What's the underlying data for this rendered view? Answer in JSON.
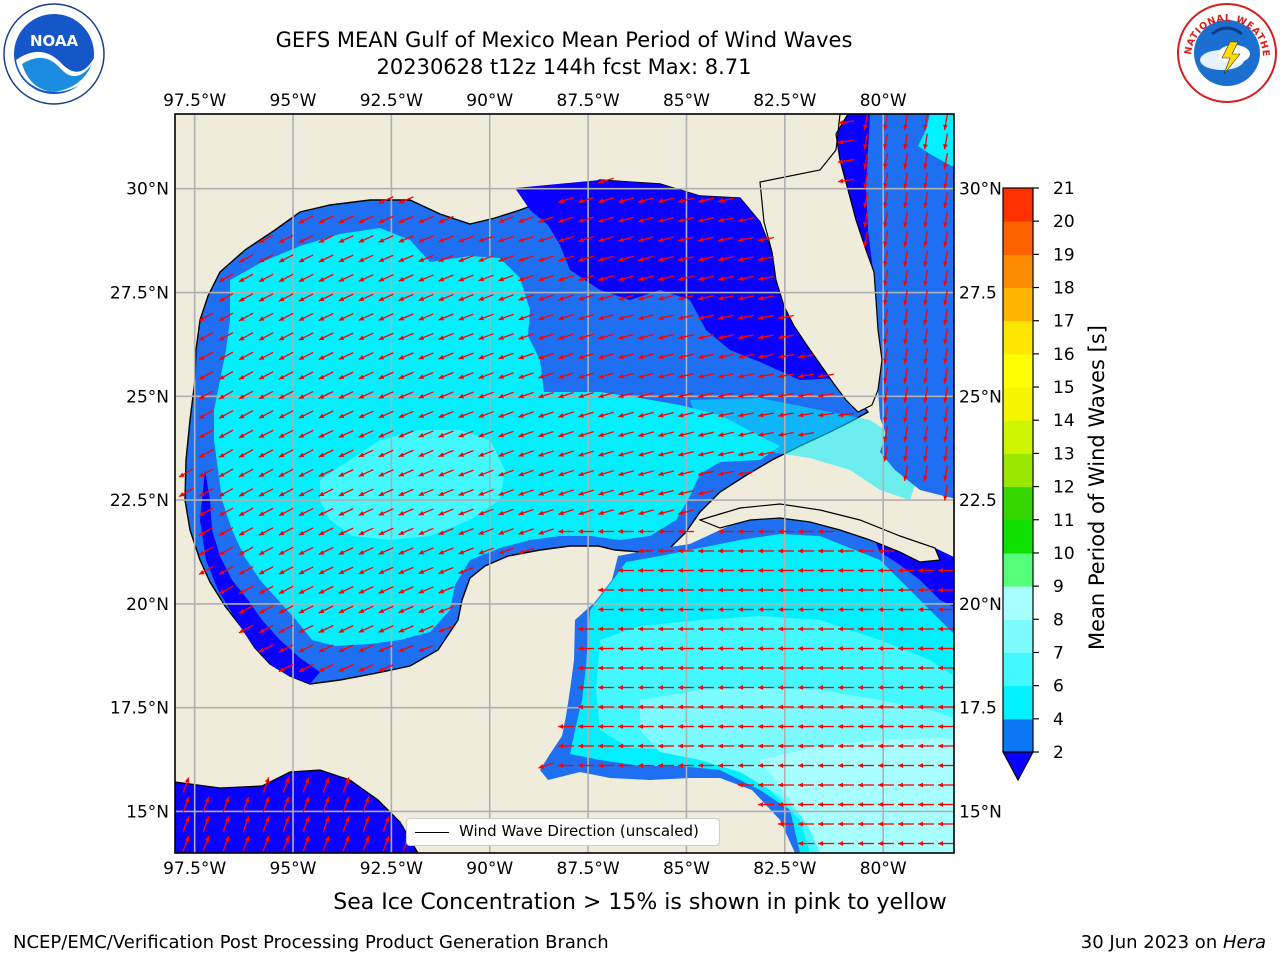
{
  "header": {
    "title_line1": "GEFS MEAN Gulf of Mexico Mean Period of Wind Waves",
    "title_line2": "20230628 t12z 144h fcst   Max: 8.71"
  },
  "logos": {
    "left": {
      "icon": "noaa-logo-icon",
      "text": "NOAA"
    },
    "right": {
      "icon": "nws-logo-icon",
      "text": "NATIONAL WEATHER SERVICE"
    }
  },
  "map": {
    "lon_ticks": [
      "97.5°W",
      "95°W",
      "92.5°W",
      "90°W",
      "87.5°W",
      "85°W",
      "82.5°W",
      "80°W"
    ],
    "lon_values": [
      -97.5,
      -95,
      -92.5,
      -90,
      -87.5,
      -85,
      -82.5,
      -80
    ],
    "lat_ticks_left": [
      "30°N",
      "27.5°N",
      "25°N",
      "22.5°N",
      "20°N",
      "17.5°N",
      "15°N"
    ],
    "lat_ticks_right": [
      "30°N",
      "27.5",
      "25°N",
      "22.5",
      "20°N",
      "17.5",
      "15°N"
    ],
    "lat_values": [
      30,
      27.5,
      25,
      22.5,
      20,
      17.5,
      15
    ],
    "extent": {
      "lon_min": -98,
      "lon_max": -78.2,
      "lat_min": 14,
      "lat_max": 31.8
    },
    "land_color": "#efecdc",
    "grid_color": "#b0b0b0",
    "arrow_color": "#ff0000",
    "legend_label": "Wind Wave Direction (unscaled)"
  },
  "colorbar": {
    "label": "Mean Period of Wind Waves [s]",
    "ticks": [
      "2",
      "4",
      "6",
      "7",
      "8",
      "9",
      "10",
      "11",
      "12",
      "13",
      "14",
      "15",
      "16",
      "17",
      "18",
      "19",
      "20",
      "21"
    ],
    "levels": [
      2,
      4,
      6,
      7,
      8,
      9,
      10,
      11,
      12,
      13,
      14,
      15,
      16,
      17,
      18,
      19,
      20,
      21
    ],
    "colors": [
      "#0a78f5",
      "#00f0ff",
      "#44f8ff",
      "#7dfcff",
      "#a8ffff",
      "#55ff77",
      "#0ee000",
      "#35d700",
      "#9ae800",
      "#cff500",
      "#f5f500",
      "#ffff00",
      "#ffe600",
      "#ffb400",
      "#ff8c00",
      "#ff6000",
      "#ff3000",
      "#ff0000"
    ],
    "extend_color": "#0a00ff"
  },
  "ice_note": "Sea Ice Concentration > 15% is shown in pink to yellow",
  "footer": {
    "left": "NCEP/EMC/Verification Post Processing Product Generation Branch",
    "right_prefix": "30 Jun 2023 on ",
    "right_host": "Hera"
  }
}
